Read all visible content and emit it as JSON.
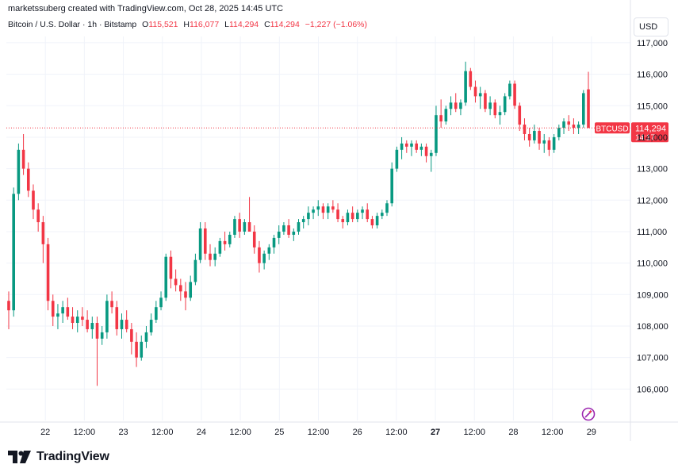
{
  "attribution": "marketssuberg created with TradingView.com, Oct 28, 2025 14:45 UTC",
  "legend": {
    "symbol": "Bitcoin / U.S. Dollar · 1h · Bitstamp",
    "open_label": "O",
    "open": "115,521",
    "high_label": "H",
    "high": "116,077",
    "low_label": "L",
    "low": "114,294",
    "close_label": "C",
    "close": "114,294",
    "change": "−1,227 (−1.06%)"
  },
  "currency": "USD",
  "brand": "TradingView",
  "colors": {
    "up": "#089981",
    "down": "#f23645",
    "grid": "#f0f3fa",
    "text": "#131722"
  },
  "chart_data": {
    "type": "candlestick",
    "title": "Bitcoin / U.S. Dollar · 1h · Bitstamp",
    "ylim": [
      105000,
      117200
    ],
    "y_ticks": [
      "106,000",
      "107,000",
      "108,000",
      "109,000",
      "110,000",
      "111,000",
      "112,000",
      "113,000",
      "114,000",
      "115,000",
      "116,000",
      "117,000"
    ],
    "y_tick_values": [
      106000,
      107000,
      108000,
      109000,
      110000,
      111000,
      112000,
      113000,
      114000,
      115000,
      116000,
      117000
    ],
    "x_ticks": [
      "22",
      "12:00",
      "23",
      "12:00",
      "24",
      "12:00",
      "25",
      "12:00",
      "26",
      "12:00",
      "27",
      "12:00",
      "28",
      "12:00",
      "29"
    ],
    "x_tick_bold": [
      false,
      false,
      false,
      false,
      false,
      false,
      false,
      false,
      false,
      false,
      true,
      false,
      false,
      false,
      false
    ],
    "x_range_hours": [
      -12,
      180
    ],
    "last_price": 114294,
    "price_label": {
      "symbol": "BTCUSD",
      "price": "114,294",
      "countdown": "14:17"
    },
    "ohlc_hourly": [
      [
        108800,
        109100,
        107900,
        108500
      ],
      [
        108500,
        112400,
        108300,
        112200
      ],
      [
        112200,
        113800,
        112000,
        113600
      ],
      [
        113600,
        114100,
        112800,
        113000
      ],
      [
        113000,
        113200,
        112100,
        112300
      ],
      [
        112300,
        112500,
        111400,
        111700
      ],
      [
        111700,
        111900,
        111000,
        111300
      ],
      [
        111300,
        111500,
        110000,
        110600
      ],
      [
        110600,
        110800,
        108500,
        108800
      ],
      [
        108800,
        109000,
        108000,
        108300
      ],
      [
        108300,
        108700,
        107900,
        108400
      ],
      [
        108400,
        108800,
        108100,
        108600
      ],
      [
        108600,
        108900,
        108200,
        108300
      ],
      [
        108300,
        108600,
        107900,
        108100
      ],
      [
        108100,
        108500,
        107800,
        108300
      ],
      [
        108300,
        108600,
        108000,
        108200
      ],
      [
        108200,
        108500,
        107800,
        107900
      ],
      [
        107900,
        108300,
        107600,
        108100
      ],
      [
        108100,
        108300,
        106100,
        107600
      ],
      [
        107600,
        108000,
        107400,
        107800
      ],
      [
        107800,
        109000,
        107600,
        108800
      ],
      [
        108800,
        109100,
        108400,
        108600
      ],
      [
        108600,
        108800,
        107700,
        107900
      ],
      [
        107900,
        108400,
        107600,
        108200
      ],
      [
        108200,
        108500,
        107800,
        107900
      ],
      [
        107900,
        108100,
        107100,
        107500
      ],
      [
        107500,
        107800,
        106700,
        107000
      ],
      [
        107000,
        107700,
        106900,
        107500
      ],
      [
        107500,
        108000,
        107300,
        107800
      ],
      [
        107800,
        108400,
        107700,
        108200
      ],
      [
        108200,
        108800,
        108100,
        108600
      ],
      [
        108600,
        109100,
        108500,
        108900
      ],
      [
        108900,
        110300,
        108800,
        110200
      ],
      [
        110200,
        110400,
        109200,
        109500
      ],
      [
        109500,
        109800,
        109100,
        109300
      ],
      [
        109300,
        109500,
        108800,
        109100
      ],
      [
        109100,
        109400,
        108500,
        108900
      ],
      [
        108900,
        109600,
        108800,
        109400
      ],
      [
        109400,
        110300,
        109300,
        110100
      ],
      [
        110100,
        111300,
        110000,
        111100
      ],
      [
        111100,
        111300,
        110100,
        110300
      ],
      [
        110300,
        110600,
        109900,
        110100
      ],
      [
        110100,
        110500,
        109900,
        110300
      ],
      [
        110300,
        110800,
        110200,
        110700
      ],
      [
        110700,
        111000,
        110400,
        110600
      ],
      [
        110600,
        111000,
        110500,
        110900
      ],
      [
        110900,
        111500,
        110800,
        111400
      ],
      [
        111400,
        111600,
        110800,
        111000
      ],
      [
        111000,
        111400,
        110900,
        111300
      ],
      [
        111300,
        112100,
        111100,
        111000
      ],
      [
        111000,
        111200,
        110300,
        110500
      ],
      [
        110500,
        110700,
        109700,
        110000
      ],
      [
        110000,
        110400,
        109800,
        110300
      ],
      [
        110300,
        110600,
        110100,
        110500
      ],
      [
        110500,
        110900,
        110300,
        110800
      ],
      [
        110800,
        111200,
        110600,
        111000
      ],
      [
        111000,
        111300,
        110900,
        111200
      ],
      [
        111200,
        111400,
        110800,
        110900
      ],
      [
        110900,
        111100,
        110700,
        111000
      ],
      [
        111000,
        111400,
        110900,
        111300
      ],
      [
        111300,
        111500,
        111100,
        111400
      ],
      [
        111400,
        111800,
        111200,
        111600
      ],
      [
        111600,
        111800,
        111400,
        111700
      ],
      [
        111700,
        112000,
        111500,
        111800
      ],
      [
        111800,
        111900,
        111400,
        111600
      ],
      [
        111600,
        111900,
        111400,
        111800
      ],
      [
        111800,
        112000,
        111600,
        111700
      ],
      [
        111700,
        111900,
        111300,
        111400
      ],
      [
        111400,
        111500,
        111100,
        111300
      ],
      [
        111300,
        111700,
        111200,
        111600
      ],
      [
        111600,
        111800,
        111300,
        111400
      ],
      [
        111400,
        111700,
        111300,
        111600
      ],
      [
        111600,
        111800,
        111400,
        111700
      ],
      [
        111700,
        111900,
        111300,
        111400
      ],
      [
        111400,
        111500,
        111100,
        111200
      ],
      [
        111200,
        111600,
        111100,
        111500
      ],
      [
        111500,
        111700,
        111400,
        111600
      ],
      [
        111600,
        112000,
        111500,
        111900
      ],
      [
        111900,
        113200,
        111800,
        113000
      ],
      [
        113000,
        113700,
        112900,
        113600
      ],
      [
        113600,
        114000,
        113300,
        113800
      ],
      [
        113800,
        113900,
        113500,
        113700
      ],
      [
        113700,
        113900,
        113400,
        113800
      ],
      [
        113800,
        113900,
        113500,
        113600
      ],
      [
        113600,
        113800,
        113400,
        113700
      ],
      [
        113700,
        113800,
        113200,
        113400
      ],
      [
        113400,
        113600,
        112900,
        113500
      ],
      [
        113500,
        115000,
        113400,
        114700
      ],
      [
        114700,
        115200,
        114300,
        114500
      ],
      [
        114500,
        115000,
        114400,
        114900
      ],
      [
        114900,
        115300,
        114700,
        115100
      ],
      [
        115100,
        115400,
        114800,
        114900
      ],
      [
        114900,
        115200,
        114700,
        115100
      ],
      [
        115100,
        116400,
        115000,
        116100
      ],
      [
        116100,
        116200,
        115500,
        115600
      ],
      [
        115600,
        115800,
        115100,
        115300
      ],
      [
        115300,
        115600,
        114900,
        115400
      ],
      [
        115400,
        115500,
        114800,
        114900
      ],
      [
        114900,
        115300,
        114700,
        115100
      ],
      [
        115100,
        115200,
        114600,
        114700
      ],
      [
        114700,
        115000,
        114400,
        114800
      ],
      [
        114800,
        115400,
        114700,
        115300
      ],
      [
        115300,
        115800,
        115200,
        115700
      ],
      [
        115700,
        115800,
        114900,
        115000
      ],
      [
        115000,
        115100,
        114200,
        114400
      ],
      [
        114400,
        114600,
        113900,
        114100
      ],
      [
        114100,
        114300,
        113700,
        113900
      ],
      [
        113900,
        114400,
        113800,
        114200
      ],
      [
        114200,
        114300,
        113600,
        113800
      ],
      [
        113800,
        114100,
        113500,
        113900
      ],
      [
        113900,
        114000,
        113400,
        113600
      ],
      [
        113600,
        114100,
        113500,
        114000
      ],
      [
        114000,
        114400,
        113900,
        114300
      ],
      [
        114300,
        114600,
        114100,
        114500
      ],
      [
        114500,
        114700,
        114200,
        114400
      ],
      [
        114400,
        114600,
        114100,
        114300
      ],
      [
        114300,
        114500,
        114100,
        114400
      ],
      [
        114400,
        115500,
        114300,
        115400
      ],
      [
        115521,
        116077,
        114294,
        114294
      ]
    ]
  }
}
